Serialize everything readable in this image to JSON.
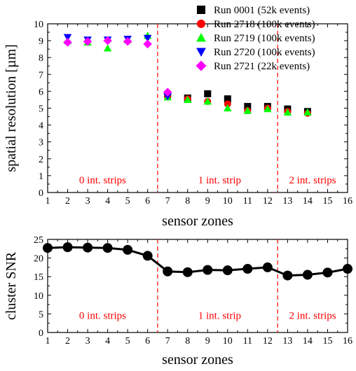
{
  "chart_data": [
    {
      "type": "scatter",
      "xlabel": "sensor zones",
      "ylabel": "spatial resolution [µm]",
      "xlim": [
        1,
        16
      ],
      "ylim": [
        0,
        10
      ],
      "x_ticks": [
        1,
        2,
        3,
        4,
        5,
        6,
        7,
        8,
        9,
        10,
        11,
        12,
        13,
        14,
        15,
        16
      ],
      "y_ticks": [
        0,
        1,
        2,
        3,
        4,
        5,
        6,
        7,
        8,
        9,
        10
      ],
      "grid": false,
      "legend_position": "top-right",
      "dividers": [
        6.5,
        12.5
      ],
      "region_labels": [
        {
          "text": "0 int. strips",
          "x": 3.75,
          "y": 0.75
        },
        {
          "text": "1 int. strip",
          "x": 9.6,
          "y": 0.75
        },
        {
          "text": "2 int. strips",
          "x": 14.25,
          "y": 0.75
        }
      ],
      "series": [
        {
          "name": "Run 0001 (52k events)",
          "marker": "square",
          "color": "#000000",
          "x": [
            7,
            8,
            9,
            10,
            11,
            12,
            13,
            14
          ],
          "y": [
            5.8,
            5.6,
            5.85,
            5.55,
            5.1,
            5.1,
            4.95,
            4.8
          ]
        },
        {
          "name": "Run 2718 (100k events)",
          "marker": "circle",
          "color": "#ff0000",
          "x": [
            7,
            8,
            9,
            10,
            11,
            12,
            13,
            14
          ],
          "y": [
            5.7,
            5.55,
            5.4,
            5.25,
            4.85,
            5.0,
            4.8,
            4.7
          ]
        },
        {
          "name": "Run 2719 (100k events)",
          "marker": "triangle-up",
          "color": "#00ff00",
          "x": [
            2,
            3,
            4,
            5,
            6,
            7,
            8,
            9,
            10,
            11,
            12,
            13,
            14
          ],
          "y": [
            9.0,
            8.9,
            8.55,
            9.05,
            9.3,
            5.65,
            5.5,
            5.4,
            5.0,
            4.85,
            4.95,
            4.75,
            4.75
          ]
        },
        {
          "name": "Run 2720 (100k events)",
          "marker": "triangle-down",
          "color": "#0000ff",
          "x": [
            2,
            3,
            4,
            5,
            6,
            7
          ],
          "y": [
            9.2,
            9.05,
            9.05,
            9.1,
            9.15,
            5.7
          ]
        },
        {
          "name": "Run 2721 (22k events)",
          "marker": "diamond",
          "color": "#ff00ff",
          "x": [
            2,
            3,
            4,
            5,
            6,
            7
          ],
          "y": [
            8.9,
            8.95,
            9.0,
            8.95,
            8.8,
            5.95
          ]
        }
      ]
    },
    {
      "type": "line",
      "xlabel": "sensor zones",
      "ylabel": "cluster SNR",
      "xlim": [
        1,
        16
      ],
      "ylim": [
        0,
        25
      ],
      "x_ticks": [
        1,
        2,
        3,
        4,
        5,
        6,
        7,
        8,
        9,
        10,
        11,
        12,
        13,
        14,
        15,
        16
      ],
      "y_ticks": [
        0,
        5,
        10,
        15,
        20,
        25
      ],
      "grid": false,
      "dividers": [
        6.5,
        12.5
      ],
      "region_labels": [
        {
          "text": "0 int. strips",
          "x": 3.75,
          "y": 4.6
        },
        {
          "text": "1 int. strip",
          "x": 9.6,
          "y": 4.6
        },
        {
          "text": "2 int. strips",
          "x": 14.25,
          "y": 4.6
        }
      ],
      "series": [
        {
          "marker": "circle",
          "color": "#000000",
          "x": [
            1,
            2,
            3,
            4,
            5,
            6,
            7,
            8,
            9,
            10,
            11,
            12,
            13,
            14,
            15,
            16
          ],
          "y": [
            22.7,
            22.9,
            22.8,
            22.7,
            22.2,
            20.6,
            16.4,
            16.2,
            16.8,
            16.7,
            17.1,
            17.5,
            15.3,
            15.5,
            16.1,
            17.1
          ]
        }
      ]
    }
  ]
}
